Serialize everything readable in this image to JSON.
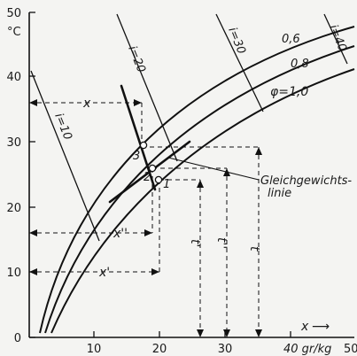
{
  "y_axis": {
    "unit_label": "°C",
    "ticks": [
      "0",
      "10",
      "20",
      "30",
      "40",
      "50"
    ]
  },
  "x_axis": {
    "ticks": [
      "10",
      "20",
      "30"
    ],
    "last_tick": "40 gr/kg",
    "cut_tick": "50",
    "label": "x",
    "arrow": "⟶"
  },
  "curves": {
    "phi_06": "0,6",
    "phi_08": "0,8",
    "phi_10": "φ=1,0"
  },
  "enthalpy_lines": {
    "i10": "i=10",
    "i20": "i=20",
    "i30": "i=30",
    "i40": "i=40"
  },
  "dimension_labels": {
    "x": "x",
    "x_double_prime": "x''",
    "x_prime": "x'",
    "t_prime": "t'",
    "t_double_prime": "t''",
    "t": "t"
  },
  "points": {
    "p1": "1",
    "p2": "2",
    "p3": "3"
  },
  "callout": {
    "line1": "Gleichgewichts-",
    "line2": "linie"
  }
}
